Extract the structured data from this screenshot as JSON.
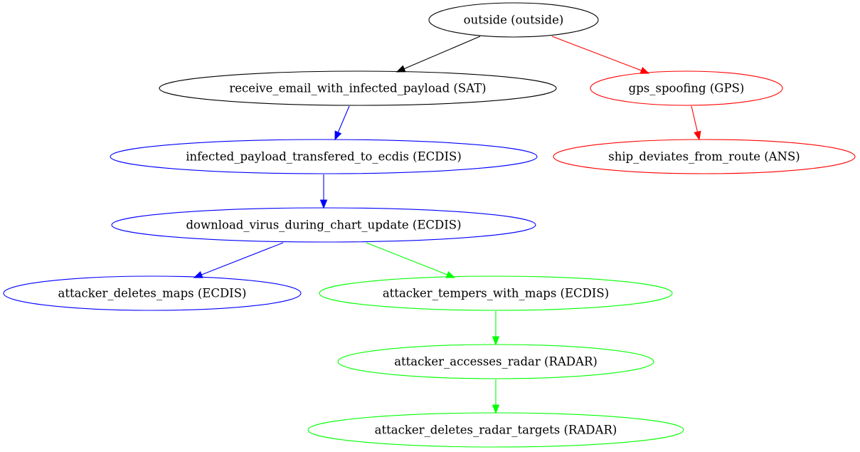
{
  "graph": {
    "nodes": [
      {
        "id": "outside",
        "label": "outside (outside)",
        "color": "#000000"
      },
      {
        "id": "receive_email",
        "label": "receive_email_with_infected_payload (SAT)",
        "color": "#000000"
      },
      {
        "id": "gps_spoofing",
        "label": "gps_spoofing (GPS)",
        "color": "#ff0000"
      },
      {
        "id": "infected_payload",
        "label": "infected_payload_transfered_to_ecdis (ECDIS)",
        "color": "#0000ff"
      },
      {
        "id": "ship_deviates",
        "label": "ship_deviates_from_route (ANS)",
        "color": "#ff0000"
      },
      {
        "id": "download_virus",
        "label": "download_virus_during_chart_update (ECDIS)",
        "color": "#0000ff"
      },
      {
        "id": "deletes_maps",
        "label": "attacker_deletes_maps (ECDIS)",
        "color": "#0000ff"
      },
      {
        "id": "tempers_maps",
        "label": "attacker_tempers_with_maps (ECDIS)",
        "color": "#00ff00"
      },
      {
        "id": "accesses_radar",
        "label": "attacker_accesses_radar (RADAR)",
        "color": "#00ff00"
      },
      {
        "id": "deletes_radar_targets",
        "label": "attacker_deletes_radar_targets (RADAR)",
        "color": "#00ff00"
      }
    ],
    "edges": [
      {
        "from": "outside",
        "to": "receive_email",
        "color": "#000000"
      },
      {
        "from": "outside",
        "to": "gps_spoofing",
        "color": "#ff0000"
      },
      {
        "from": "receive_email",
        "to": "infected_payload",
        "color": "#0000ff"
      },
      {
        "from": "gps_spoofing",
        "to": "ship_deviates",
        "color": "#ff0000"
      },
      {
        "from": "infected_payload",
        "to": "download_virus",
        "color": "#0000ff"
      },
      {
        "from": "download_virus",
        "to": "deletes_maps",
        "color": "#0000ff"
      },
      {
        "from": "download_virus",
        "to": "tempers_maps",
        "color": "#00ff00"
      },
      {
        "from": "tempers_maps",
        "to": "accesses_radar",
        "color": "#00ff00"
      },
      {
        "from": "accesses_radar",
        "to": "deletes_radar_targets",
        "color": "#00ff00"
      }
    ]
  }
}
